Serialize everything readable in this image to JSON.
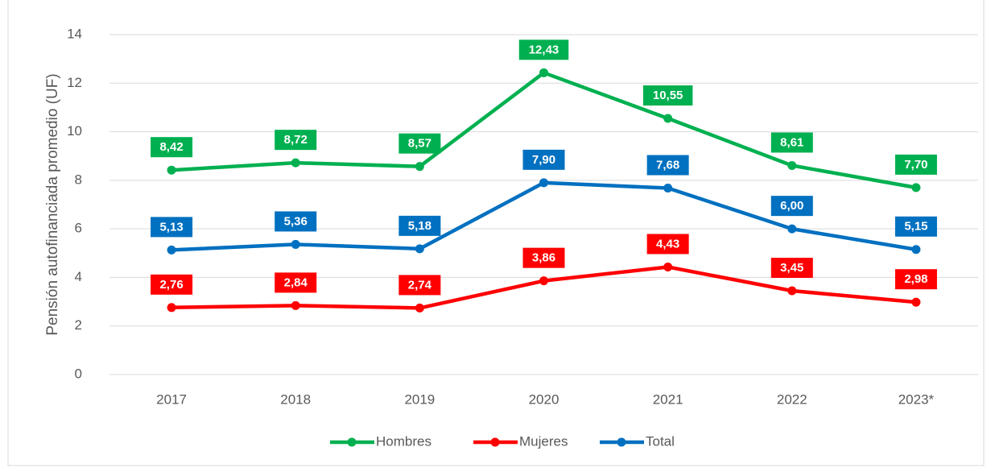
{
  "chart_data": {
    "type": "line",
    "y_label": "Pensión autofinanciada promedio (UF)",
    "categories": [
      "2017",
      "2018",
      "2019",
      "2020",
      "2021",
      "2022",
      "2023*"
    ],
    "series": [
      {
        "name": "Hombres",
        "color": "#00b050",
        "values": [
          8.42,
          8.72,
          8.57,
          12.43,
          10.55,
          8.61,
          7.7
        ],
        "value_labels": [
          "8,42",
          "8,72",
          "8,57",
          "12,43",
          "10,55",
          "8,61",
          "7,70"
        ]
      },
      {
        "name": "Mujeres",
        "color": "#ff0000",
        "values": [
          2.76,
          2.84,
          2.74,
          3.86,
          4.43,
          3.45,
          2.98
        ],
        "value_labels": [
          "2,76",
          "2,84",
          "2,74",
          "3,86",
          "4,43",
          "3,45",
          "2,98"
        ]
      },
      {
        "name": "Total",
        "color": "#0070c0",
        "values": [
          5.13,
          5.36,
          5.18,
          7.9,
          7.68,
          6.0,
          5.15
        ],
        "value_labels": [
          "5,13",
          "5,36",
          "5,18",
          "7,90",
          "7,68",
          "6,00",
          "5,15"
        ]
      }
    ],
    "ylim": [
      0,
      14
    ],
    "yticks": [
      0,
      2,
      4,
      6,
      8,
      10,
      12,
      14
    ],
    "grid": true,
    "legend": "bottom"
  }
}
